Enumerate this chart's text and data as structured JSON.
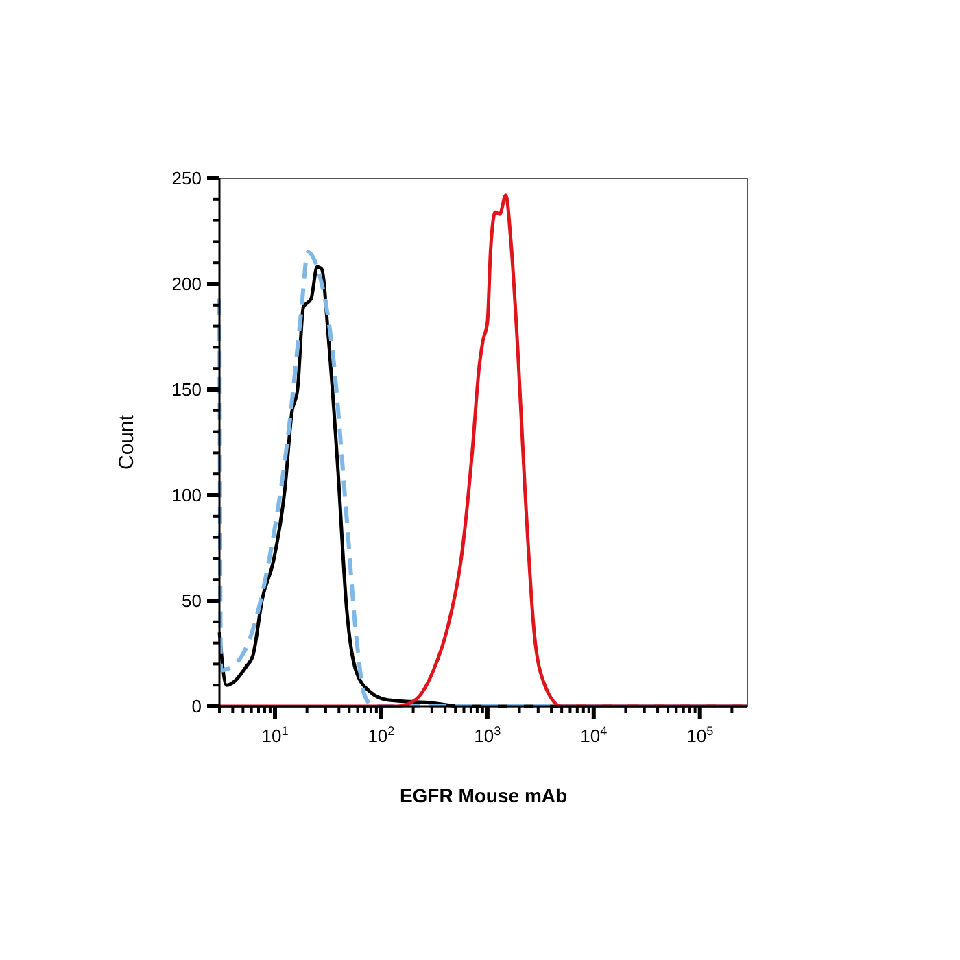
{
  "chart_data": {
    "type": "line",
    "xlabel": "EGFR Mouse mAb",
    "ylabel": "Count",
    "log": "x",
    "xlim": [
      3,
      280000
    ],
    "xticks": [
      {
        "value": 3,
        "label": null
      },
      {
        "value": 4,
        "label": null
      },
      {
        "value": 5,
        "label": null
      },
      {
        "value": 6,
        "label": null
      },
      {
        "value": 7,
        "label": null
      },
      {
        "value": 8,
        "label": null
      },
      {
        "value": 9,
        "label": null
      },
      {
        "value": 10,
        "label": "10$^{1}$"
      },
      {
        "value": 20,
        "label": null
      },
      {
        "value": 30,
        "label": null
      },
      {
        "value": 40,
        "label": null
      },
      {
        "value": 50,
        "label": null
      },
      {
        "value": 60,
        "label": null
      },
      {
        "value": 70,
        "label": null
      },
      {
        "value": 80,
        "label": null
      },
      {
        "value": 90,
        "label": null
      },
      {
        "value": 100,
        "label": "10$^{2}$"
      },
      {
        "value": 200,
        "label": null
      },
      {
        "value": 300,
        "label": null
      },
      {
        "value": 400,
        "label": null
      },
      {
        "value": 500,
        "label": null
      },
      {
        "value": 600,
        "label": null
      },
      {
        "value": 700,
        "label": null
      },
      {
        "value": 800,
        "label": null
      },
      {
        "value": 900,
        "label": null
      },
      {
        "value": 1000,
        "label": "10$^{3}$"
      },
      {
        "value": 2000,
        "label": null
      },
      {
        "value": 3000,
        "label": null
      },
      {
        "value": 4000,
        "label": null
      },
      {
        "value": 5000,
        "label": null
      },
      {
        "value": 6000,
        "label": null
      },
      {
        "value": 7000,
        "label": null
      },
      {
        "value": 8000,
        "label": null
      },
      {
        "value": 9000,
        "label": null
      },
      {
        "value": 10000,
        "label": "10$^{4}$"
      },
      {
        "value": 20000,
        "label": null
      },
      {
        "value": 30000,
        "label": null
      },
      {
        "value": 40000,
        "label": null
      },
      {
        "value": 50000,
        "label": null
      },
      {
        "value": 60000,
        "label": null
      },
      {
        "value": 70000,
        "label": null
      },
      {
        "value": 80000,
        "label": null
      },
      {
        "value": 90000,
        "label": null
      },
      {
        "value": 100000,
        "label": "10$^{5}$"
      },
      {
        "value": 200000,
        "label": null
      }
    ],
    "ylim": [
      0,
      250
    ],
    "yticks": [
      0,
      {
        "value": 10,
        "label": null
      },
      {
        "value": 20,
        "label": null
      },
      {
        "value": 30,
        "label": null
      },
      {
        "value": 40,
        "label": null
      },
      50,
      {
        "value": 60,
        "label": null
      },
      {
        "value": 70,
        "label": null
      },
      {
        "value": 80,
        "label": null
      },
      {
        "value": 90,
        "label": null
      },
      100,
      {
        "value": 110,
        "label": null
      },
      {
        "value": 120,
        "label": null
      },
      {
        "value": 130,
        "label": null
      },
      {
        "value": 140,
        "label": null
      },
      150,
      {
        "value": 160,
        "label": null
      },
      {
        "value": 170,
        "label": null
      },
      {
        "value": 180,
        "label": null
      },
      {
        "value": 190,
        "label": null
      },
      200,
      {
        "value": 210,
        "label": null
      },
      {
        "value": 220,
        "label": null
      },
      {
        "value": 230,
        "label": null
      },
      {
        "value": 240,
        "label": null
      },
      250
    ],
    "series": [
      {
        "color": "#000000",
        "line_style": "solid",
        "x": [
          3,
          3.5,
          5.4,
          6.2,
          7.6,
          9.7,
          12.4,
          14.4,
          16.3,
          18.5,
          21.9,
          24.9,
          27.5,
          31.8,
          38.9,
          47.3,
          57.7,
          78,
          115,
          310,
          560,
          280000
        ],
        "values": [
          35,
          10,
          19,
          24,
          51,
          69,
          103,
          139,
          150,
          189,
          193,
          208,
          207,
          175,
          114,
          46,
          17,
          7,
          3,
          1.5,
          0,
          0
        ]
      },
      {
        "color": "#7fb8e6",
        "line_style": "dashed",
        "x": [
          3,
          3.1,
          4,
          5.9,
          8.4,
          13.7,
          17.6,
          20.4,
          24.9,
          35.2,
          47.3,
          57.7,
          70,
          85,
          280000
        ],
        "values": [
          193,
          17,
          19,
          33,
          64,
          134,
          186,
          215,
          208,
          166,
          89,
          35,
          5,
          0,
          0
        ]
      },
      {
        "color": "#e0151b",
        "line_style": "solid",
        "x": [
          3,
          141,
          209,
          310,
          435,
          587,
          721,
          837,
          906,
          1000,
          1071,
          1186,
          1306,
          1486,
          1675,
          1943,
          2253,
          2754,
          3351,
          4977,
          280000
        ],
        "values": [
          0,
          0,
          3,
          17,
          40,
          76,
          121,
          161,
          173,
          182,
          216,
          234,
          233,
          242,
          218,
          166,
          103,
          35,
          12,
          0,
          0
        ]
      }
    ]
  }
}
